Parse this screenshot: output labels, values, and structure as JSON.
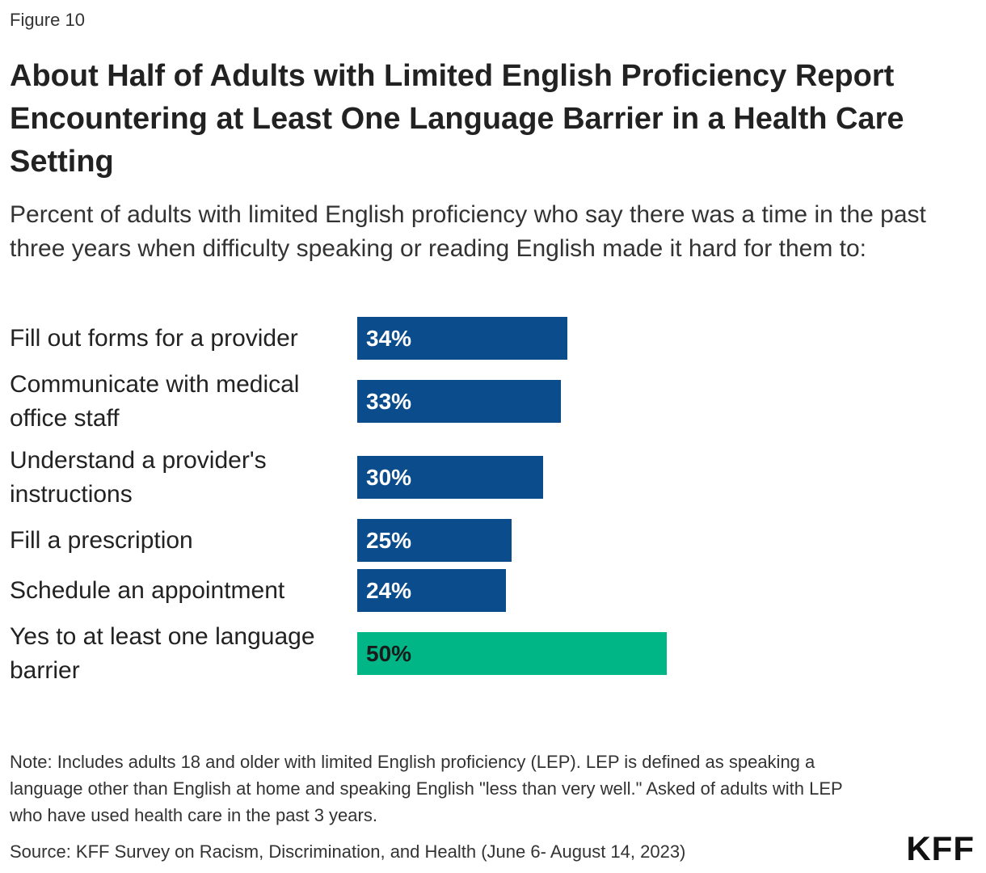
{
  "figure_label": "Figure 10",
  "title": "About Half of Adults with Limited English Proficiency Report Encountering at Least One Language Barrier in a Health Care Setting",
  "subtitle": "Percent of adults with limited English proficiency who say there was a time in the past three years when difficulty speaking or reading English made it hard for them to:",
  "note": "Note: Includes adults 18 and older with limited English proficiency (LEP). LEP is defined as speaking a language other than English at home and speaking English \"less than very well.\" Asked of adults with LEP who have used health care in the past 3 years.",
  "source": "Source: KFF Survey on Racism, Discrimination, and Health (June 6- August 14, 2023)",
  "logo": "KFF",
  "colors": {
    "primary_bar": "#0b4d8c",
    "highlight_bar": "#00b586",
    "primary_label_text": "#ffffff",
    "highlight_label_text": "#1a1a1a"
  },
  "chart_data": {
    "type": "bar",
    "orientation": "horizontal",
    "categories": [
      "Fill out forms for a provider",
      "Communicate with medical office staff",
      "Understand a provider's instructions",
      "Fill a prescription",
      "Schedule an appointment",
      "Yes to at least one language barrier"
    ],
    "values": [
      34,
      33,
      30,
      25,
      24,
      50
    ],
    "data_labels": [
      "34%",
      "33%",
      "30%",
      "25%",
      "24%",
      "50%"
    ],
    "highlight": [
      false,
      false,
      false,
      false,
      false,
      true
    ],
    "title": "About Half of Adults with Limited English Proficiency Report Encountering at Least One Language Barrier in a Health Care Setting",
    "xlabel": "",
    "ylabel": "",
    "xlim": [
      0,
      100
    ],
    "grid": false,
    "legend": false
  }
}
